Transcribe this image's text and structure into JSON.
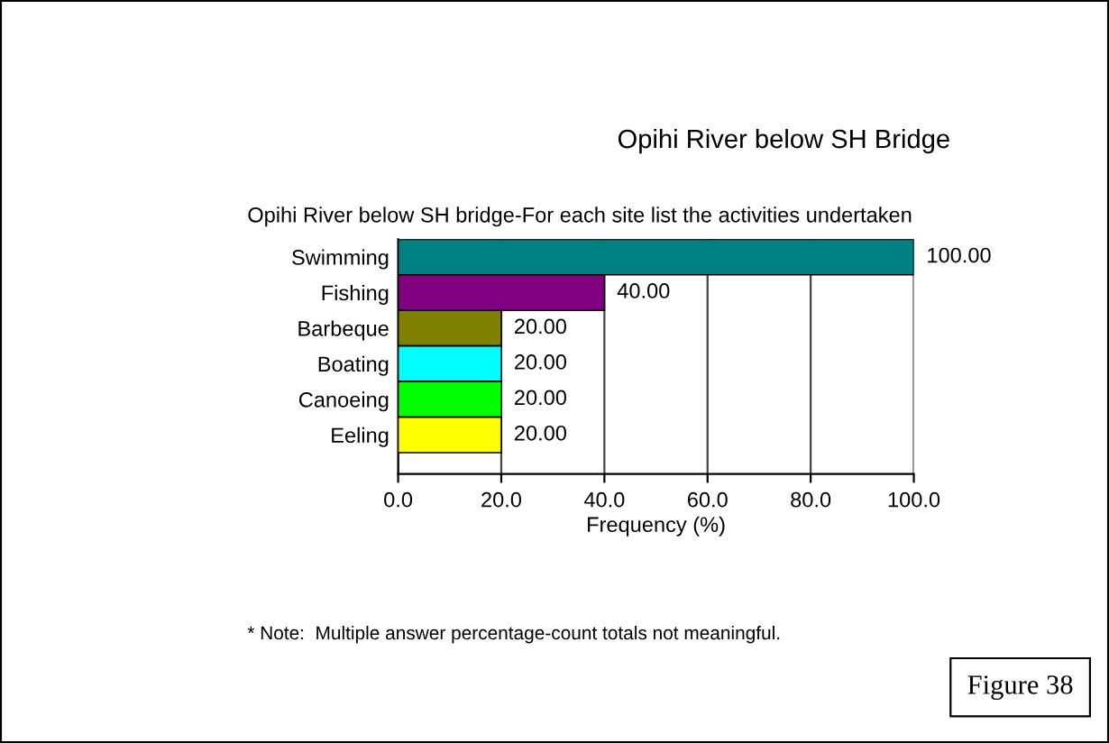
{
  "chart_data": {
    "type": "bar",
    "orientation": "horizontal",
    "title": "Opihi River below SH Bridge",
    "subtitle": "Opihi River below SH bridge-For each site list the activities undertaken",
    "categories": [
      "Swimming",
      "Fishing",
      "Barbeque",
      "Boating",
      "Canoeing",
      "Eeling"
    ],
    "values": [
      100,
      40,
      20,
      20,
      20,
      20
    ],
    "colors": [
      "#008080",
      "#800080",
      "#808000",
      "#00ffff",
      "#00ff00",
      "#ffff00"
    ],
    "value_labels": [
      "100.00",
      "40.00",
      "20.00",
      "20.00",
      "20.00",
      "20.00"
    ],
    "xlabel": "Frequency (%)",
    "xlim": [
      0,
      100
    ],
    "xticks": [
      {
        "value": 0,
        "label": "0.0"
      },
      {
        "value": 20,
        "label": "20.0"
      },
      {
        "value": 40,
        "label": "40.0"
      },
      {
        "value": 60,
        "label": "60.0"
      },
      {
        "value": 80,
        "label": "80.0"
      },
      {
        "value": 100,
        "label": "100.0"
      }
    ],
    "grid": "x",
    "annotations": [
      "* Note:  Multiple answer percentage-count totals not meaningful.",
      "Figure 38"
    ]
  }
}
